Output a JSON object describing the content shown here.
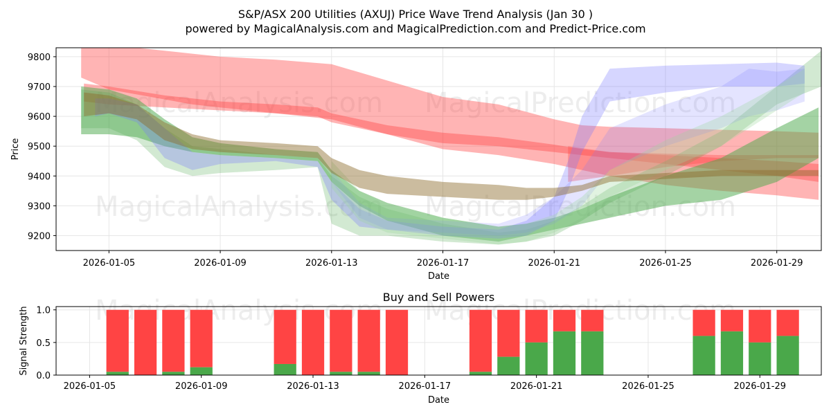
{
  "title": "S&P/ASX 200 Utilities (AXUJ) Price Wave Trend Analysis (Jan 30 )",
  "subtitle": "powered by MagicalAnalysis.com and MagicalPrediction.com and Predict-Price.com",
  "watermarks": [
    "MagicalAnalysis.com",
    "MagicalPrediction.com"
  ],
  "colors": {
    "red": "#ff4444",
    "green": "#4aa84a",
    "blue": "#7777ff",
    "light_green": "#9dd69d"
  },
  "chart_data": [
    {
      "type": "area",
      "title": "",
      "xlabel": "Date",
      "ylabel": "Price",
      "x_range_days": [
        -1.9,
        25.6
      ],
      "ylim": [
        9150,
        9830
      ],
      "x_ticks": [
        {
          "day": 0,
          "label": "2026-01-05"
        },
        {
          "day": 4,
          "label": "2026-01-09"
        },
        {
          "day": 8,
          "label": "2026-01-13"
        },
        {
          "day": 12,
          "label": "2026-01-17"
        },
        {
          "day": 16,
          "label": "2026-01-21"
        },
        {
          "day": 20,
          "label": "2026-01-25"
        },
        {
          "day": 24,
          "label": "2026-01-29"
        }
      ],
      "y_ticks": [
        9200,
        9300,
        9400,
        9500,
        9600,
        9700,
        9800
      ],
      "grid": true,
      "series": [
        {
          "name": "red wide band",
          "color": "#ff4444",
          "opacity": 0.4,
          "x": [
            -1,
            0,
            3,
            4,
            6,
            8,
            10,
            12,
            14,
            16,
            17,
            18,
            20,
            22,
            24,
            25.5
          ],
          "upper": [
            9830,
            9840,
            9810,
            9800,
            9790,
            9775,
            9720,
            9665,
            9640,
            9590,
            9570,
            9565,
            9560,
            9555,
            9550,
            9545
          ],
          "lower": [
            9730,
            9690,
            9640,
            9630,
            9610,
            9590,
            9540,
            9490,
            9470,
            9440,
            9420,
            9400,
            9370,
            9350,
            9335,
            9320
          ]
        },
        {
          "name": "red band 2",
          "color": "#ff4444",
          "opacity": 0.4,
          "x": [
            -0.9,
            0,
            2,
            4,
            6,
            7.5,
            8,
            9,
            10,
            12,
            14,
            16,
            17,
            18,
            20,
            22,
            24,
            25.5
          ],
          "upper": [
            9710,
            9700,
            9670,
            9650,
            9640,
            9630,
            9610,
            9590,
            9570,
            9545,
            9530,
            9505,
            9490,
            9480,
            9470,
            9460,
            9450,
            9440
          ],
          "lower": [
            9650,
            9640,
            9630,
            9620,
            9610,
            9600,
            9580,
            9560,
            9540,
            9510,
            9500,
            9480,
            9470,
            9460,
            9440,
            9420,
            9400,
            9380
          ]
        },
        {
          "name": "red band 3",
          "color": "#ff4444",
          "opacity": 0.35,
          "x": [
            16.5,
            18,
            20,
            22,
            24,
            25.5
          ],
          "upper": [
            9500,
            9480,
            9475,
            9470,
            9470,
            9470
          ],
          "lower": [
            9380,
            9400,
            9430,
            9450,
            9460,
            9460
          ]
        },
        {
          "name": "green band 1",
          "color": "#4aa84a",
          "opacity": 0.5,
          "x": [
            -1,
            0,
            1,
            2,
            3,
            4,
            6,
            7.5,
            8,
            9,
            10,
            12,
            14,
            15,
            16,
            17,
            18,
            20,
            22,
            24,
            25.5
          ],
          "upper": [
            9700,
            9690,
            9660,
            9590,
            9530,
            9510,
            9490,
            9480,
            9420,
            9350,
            9310,
            9260,
            9230,
            9240,
            9260,
            9290,
            9330,
            9400,
            9460,
            9560,
            9630
          ],
          "lower": [
            9540,
            9540,
            9530,
            9500,
            9480,
            9470,
            9460,
            9450,
            9380,
            9300,
            9250,
            9200,
            9180,
            9200,
            9220,
            9240,
            9260,
            9300,
            9320,
            9380,
            9460
          ]
        },
        {
          "name": "green band 2",
          "color": "#4aa84a",
          "opacity": 0.25,
          "x": [
            -1,
            0,
            1,
            2,
            3,
            4,
            6,
            7.5,
            8,
            9,
            10,
            12,
            14,
            15,
            16,
            17,
            18,
            20,
            22,
            24,
            25.6
          ],
          "upper": [
            9690,
            9680,
            9640,
            9560,
            9500,
            9490,
            9470,
            9460,
            9400,
            9330,
            9290,
            9240,
            9210,
            9220,
            9250,
            9300,
            9360,
            9450,
            9550,
            9700,
            9820
          ],
          "lower": [
            9560,
            9560,
            9520,
            9430,
            9400,
            9410,
            9420,
            9430,
            9240,
            9200,
            9200,
            9180,
            9170,
            9180,
            9200,
            9250,
            9310,
            9400,
            9500,
            9640,
            9700
          ]
        },
        {
          "name": "blue band 1",
          "color": "#7777ff",
          "opacity": 0.3,
          "x": [
            -0.5,
            0,
            1,
            2,
            3,
            4,
            6,
            7.5,
            8,
            9,
            10,
            12,
            14,
            15,
            16,
            16.5,
            17,
            18,
            20,
            22,
            24,
            25
          ],
          "upper": [
            9660,
            9660,
            9640,
            9560,
            9480,
            9470,
            9460,
            9450,
            9380,
            9290,
            9250,
            9230,
            9220,
            9250,
            9330,
            9450,
            9600,
            9760,
            9770,
            9775,
            9780,
            9770
          ],
          "lower": [
            9600,
            9610,
            9580,
            9460,
            9420,
            9440,
            9450,
            9430,
            9320,
            9230,
            9220,
            9200,
            9190,
            9200,
            9250,
            9350,
            9480,
            9650,
            9680,
            9700,
            9700,
            9710
          ]
        },
        {
          "name": "blue band 2",
          "color": "#7777ff",
          "opacity": 0.2,
          "x": [
            8,
            9,
            10,
            12,
            14,
            15,
            16,
            17,
            18,
            20,
            22,
            23,
            24,
            25
          ],
          "upper": [
            9420,
            9310,
            9260,
            9250,
            9240,
            9270,
            9330,
            9420,
            9560,
            9640,
            9700,
            9760,
            9750,
            9760
          ],
          "lower": [
            9380,
            9260,
            9220,
            9210,
            9200,
            9210,
            9240,
            9300,
            9420,
            9500,
            9560,
            9600,
            9620,
            9650
          ]
        },
        {
          "name": "light green band",
          "color": "#9dd69d",
          "opacity": 0.3,
          "x": [
            8,
            9,
            10,
            12,
            14,
            15,
            16,
            17,
            18,
            20,
            22,
            24,
            25
          ],
          "upper": [
            9450,
            9350,
            9300,
            9260,
            9230,
            9240,
            9270,
            9330,
            9420,
            9520,
            9600,
            9700,
            9760
          ],
          "lower": [
            9360,
            9250,
            9210,
            9190,
            9170,
            9180,
            9210,
            9260,
            9330,
            9420,
            9500,
            9620,
            9680
          ]
        },
        {
          "name": "brown overlap band",
          "color": "#8b6a2a",
          "opacity": 0.45,
          "x": [
            -0.9,
            0,
            1,
            2,
            3,
            4,
            6,
            7.5,
            8,
            9,
            10,
            12,
            14,
            15,
            16,
            17,
            18,
            20,
            22,
            24,
            25.5
          ],
          "upper": [
            9680,
            9670,
            9640,
            9580,
            9540,
            9520,
            9510,
            9500,
            9460,
            9420,
            9400,
            9380,
            9370,
            9360,
            9360,
            9370,
            9400,
            9410,
            9420,
            9420,
            9420
          ],
          "lower": [
            9600,
            9610,
            9590,
            9520,
            9490,
            9480,
            9470,
            9460,
            9410,
            9360,
            9340,
            9330,
            9320,
            9320,
            9330,
            9350,
            9380,
            9390,
            9400,
            9400,
            9400
          ]
        }
      ]
    },
    {
      "type": "bar",
      "title": "Buy and Sell Powers",
      "xlabel": "Date",
      "ylabel": "Signal Strength",
      "x_range_days": [
        -1.2,
        26.2
      ],
      "ylim": [
        0,
        1.05
      ],
      "x_ticks": [
        {
          "day": 0,
          "label": "2026-01-05"
        },
        {
          "day": 4,
          "label": "2026-01-09"
        },
        {
          "day": 8,
          "label": "2026-01-13"
        },
        {
          "day": 12,
          "label": "2026-01-17"
        },
        {
          "day": 16,
          "label": "2026-01-21"
        },
        {
          "day": 20,
          "label": "2026-01-25"
        },
        {
          "day": 24,
          "label": "2026-01-29"
        }
      ],
      "y_ticks": [
        0.0,
        0.5,
        1.0
      ],
      "y_tick_labels": [
        "0.0",
        "0.5",
        "1.0"
      ],
      "grid": true,
      "series": [
        {
          "name": "Buy",
          "color": "#4aa84a"
        },
        {
          "name": "Sell",
          "color": "#ff4444"
        }
      ],
      "bars": [
        {
          "day": 1,
          "buy": 0.05
        },
        {
          "day": 2,
          "buy": 0.0
        },
        {
          "day": 3,
          "buy": 0.05
        },
        {
          "day": 4,
          "buy": 0.12
        },
        {
          "day": 7,
          "buy": 0.17
        },
        {
          "day": 8,
          "buy": 0.0
        },
        {
          "day": 9,
          "buy": 0.05
        },
        {
          "day": 10,
          "buy": 0.05
        },
        {
          "day": 11,
          "buy": 0.0
        },
        {
          "day": 14,
          "buy": 0.05
        },
        {
          "day": 15,
          "buy": 0.28
        },
        {
          "day": 16,
          "buy": 0.5
        },
        {
          "day": 17,
          "buy": 0.67
        },
        {
          "day": 18,
          "buy": 0.67
        },
        {
          "day": 22,
          "buy": 0.6
        },
        {
          "day": 23,
          "buy": 0.67
        },
        {
          "day": 24,
          "buy": 0.5
        },
        {
          "day": 25,
          "buy": 0.6
        }
      ]
    }
  ]
}
